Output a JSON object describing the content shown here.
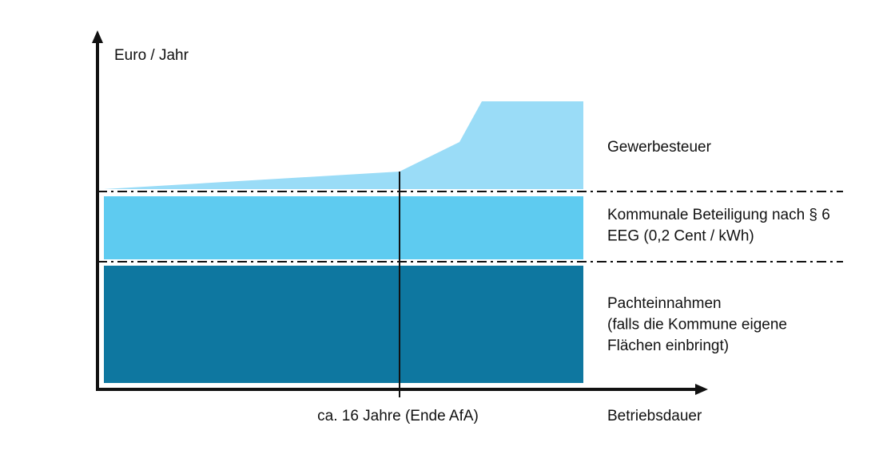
{
  "axes": {
    "y_label": "Euro / Jahr",
    "x_label": "Betriebsdauer",
    "marker_label": "ca. 16 Jahre (Ende AfA)"
  },
  "layers": [
    {
      "lines": [
        "Gewerbesteuer"
      ]
    },
    {
      "lines": [
        "Kommunale Beteiligung nach § 6",
        "EEG (0,2 Cent / kWh)"
      ]
    },
    {
      "lines": [
        "Pachteinnahmen",
        "(falls die Kommune eigene",
        "Flächen einbringt)"
      ]
    }
  ]
}
